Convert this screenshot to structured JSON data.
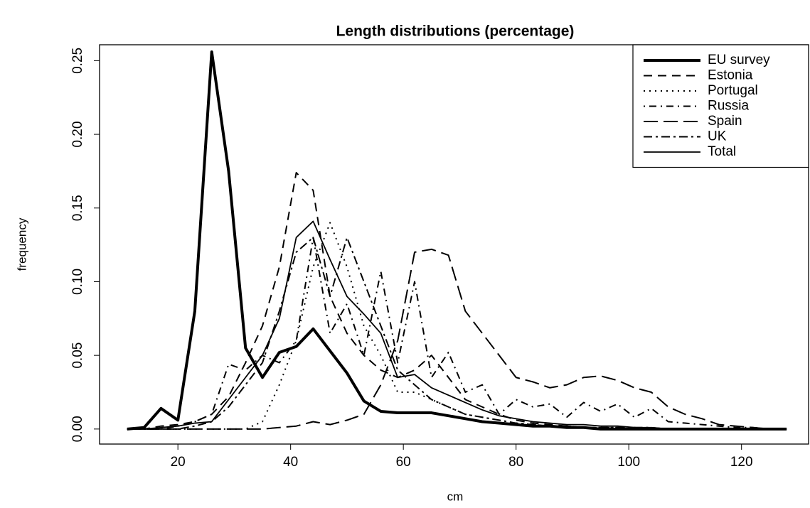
{
  "chart_data": {
    "type": "line",
    "title": "Length distributions (percentage)",
    "x_label": "cm",
    "y_label": "frequency",
    "x": [
      11,
      14,
      17,
      20,
      23,
      26,
      29,
      32,
      35,
      38,
      41,
      44,
      47,
      50,
      53,
      56,
      59,
      62,
      65,
      68,
      71,
      74,
      77,
      80,
      83,
      86,
      89,
      92,
      95,
      98,
      101,
      104,
      107,
      110,
      113,
      116,
      119,
      122,
      125,
      128
    ],
    "series": [
      {
        "name": "EU survey",
        "color": "#000000",
        "width": 4,
        "dash": "none",
        "values": [
          0,
          0.001,
          0.014,
          0.006,
          0.08,
          0.256,
          0.175,
          0.055,
          0.035,
          0.052,
          0.056,
          0.068,
          0.053,
          0.038,
          0.019,
          0.012,
          0.011,
          0.011,
          0.011,
          0.009,
          0.007,
          0.005,
          0.004,
          0.003,
          0.002,
          0.002,
          0.001,
          0.001,
          0,
          0,
          0,
          0,
          0,
          0,
          0,
          0,
          0,
          0,
          0,
          0
        ]
      },
      {
        "name": "Estonia",
        "color": "#000000",
        "width": 2,
        "dash": "12,8",
        "values": [
          0,
          0,
          0.002,
          0.003,
          0.005,
          0.01,
          0.022,
          0.045,
          0.07,
          0.11,
          0.174,
          0.162,
          0.09,
          0.065,
          0.05,
          0.04,
          0.035,
          0.04,
          0.05,
          0.035,
          0.02,
          0.015,
          0.01,
          0.006,
          0.004,
          0.003,
          0.002,
          0.001,
          0.001,
          0.001,
          0.001,
          0,
          0,
          0,
          0,
          0,
          0,
          0,
          0,
          0
        ]
      },
      {
        "name": "Portugal",
        "color": "#000000",
        "width": 2,
        "dash": "2,6",
        "values": [
          0,
          0,
          0,
          0,
          0,
          0,
          0,
          0,
          0.005,
          0.03,
          0.06,
          0.11,
          0.14,
          0.11,
          0.07,
          0.05,
          0.025,
          0.025,
          0.02,
          0.015,
          0.01,
          0.008,
          0.006,
          0.004,
          0.003,
          0.002,
          0.002,
          0.001,
          0.001,
          0.001,
          0,
          0,
          0,
          0,
          0,
          0,
          0,
          0,
          0,
          0
        ]
      },
      {
        "name": "Russia",
        "color": "#000000",
        "width": 2,
        "dash": "2,6,10,6",
        "values": [
          0,
          0,
          0,
          0.002,
          0.005,
          0.01,
          0.044,
          0.04,
          0.05,
          0.045,
          0.06,
          0.13,
          0.065,
          0.085,
          0.05,
          0.107,
          0.045,
          0.1,
          0.035,
          0.052,
          0.025,
          0.03,
          0.01,
          0.02,
          0.015,
          0.017,
          0.008,
          0.018,
          0.012,
          0.017,
          0.008,
          0.014,
          0.005,
          0.004,
          0.003,
          0.002,
          0.001,
          0.001,
          0,
          0
        ]
      },
      {
        "name": "Spain",
        "color": "#000000",
        "width": 2,
        "dash": "20,8",
        "values": [
          0,
          0,
          0,
          0,
          0,
          0,
          0,
          0,
          0,
          0.001,
          0.002,
          0.005,
          0.003,
          0.006,
          0.01,
          0.03,
          0.06,
          0.12,
          0.122,
          0.118,
          0.08,
          0.065,
          0.05,
          0.035,
          0.032,
          0.028,
          0.03,
          0.035,
          0.036,
          0.033,
          0.028,
          0.025,
          0.015,
          0.01,
          0.007,
          0.003,
          0.002,
          0.001,
          0,
          0
        ]
      },
      {
        "name": "UK",
        "color": "#000000",
        "width": 2,
        "dash": "12,5,3,5",
        "values": [
          0,
          0,
          0,
          0,
          0.002,
          0.005,
          0.015,
          0.03,
          0.045,
          0.08,
          0.12,
          0.13,
          0.09,
          0.13,
          0.1,
          0.07,
          0.04,
          0.03,
          0.02,
          0.015,
          0.01,
          0.008,
          0.006,
          0.004,
          0.003,
          0.002,
          0.002,
          0.001,
          0.001,
          0.001,
          0.001,
          0.001,
          0,
          0,
          0,
          0,
          0,
          0,
          0,
          0
        ]
      },
      {
        "name": "Total",
        "color": "#000000",
        "width": 1.8,
        "dash": "none",
        "values": [
          0,
          0,
          0.001,
          0.002,
          0.004,
          0.005,
          0.02,
          0.035,
          0.05,
          0.075,
          0.13,
          0.141,
          0.115,
          0.09,
          0.078,
          0.065,
          0.035,
          0.037,
          0.028,
          0.023,
          0.018,
          0.013,
          0.009,
          0.007,
          0.005,
          0.004,
          0.003,
          0.003,
          0.002,
          0.002,
          0.001,
          0.001,
          0,
          0,
          0,
          0,
          0,
          0,
          0,
          0
        ]
      }
    ],
    "xlim": [
      6.1,
      131.9
    ],
    "ylim": [
      -0.0102,
      0.2608
    ],
    "xticks": [
      20,
      40,
      60,
      80,
      100,
      120
    ],
    "yticks": [
      {
        "value": 0,
        "label": "0.00"
      },
      0.05,
      {
        "value": 0.1,
        "label": "0.10"
      },
      0.15,
      {
        "value": 0.2,
        "label": "0.20"
      },
      0.25
    ],
    "legend": "top-right"
  }
}
